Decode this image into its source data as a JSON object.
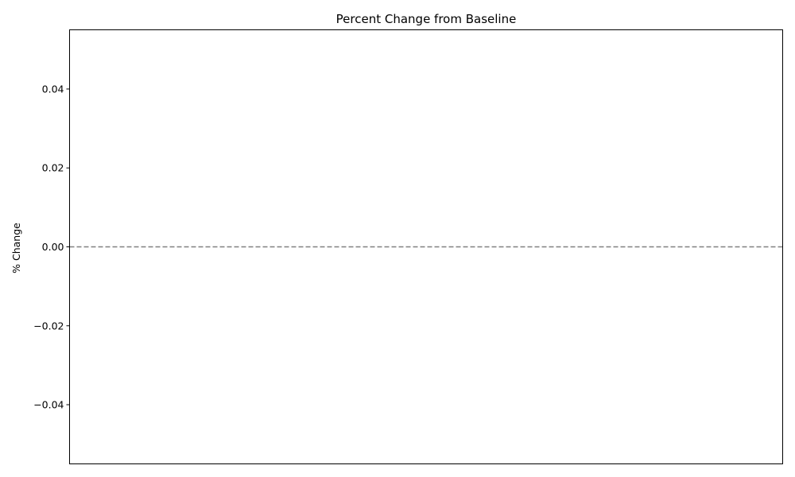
{
  "chart_data": {
    "type": "line",
    "title": "Percent Change from Baseline",
    "xlabel": "",
    "ylabel": "% Change",
    "ylim": [
      -0.055,
      0.055
    ],
    "yticks": [
      0.04,
      0.02,
      0.0,
      -0.02,
      -0.04
    ],
    "ytick_labels": [
      "0.04",
      "0.02",
      "0.00",
      "−0.02",
      "−0.04"
    ],
    "xticks": [],
    "series": [],
    "reference_line": {
      "y": 0,
      "style": "dashed",
      "color": "#808080"
    },
    "grid": false,
    "legend": "none"
  }
}
